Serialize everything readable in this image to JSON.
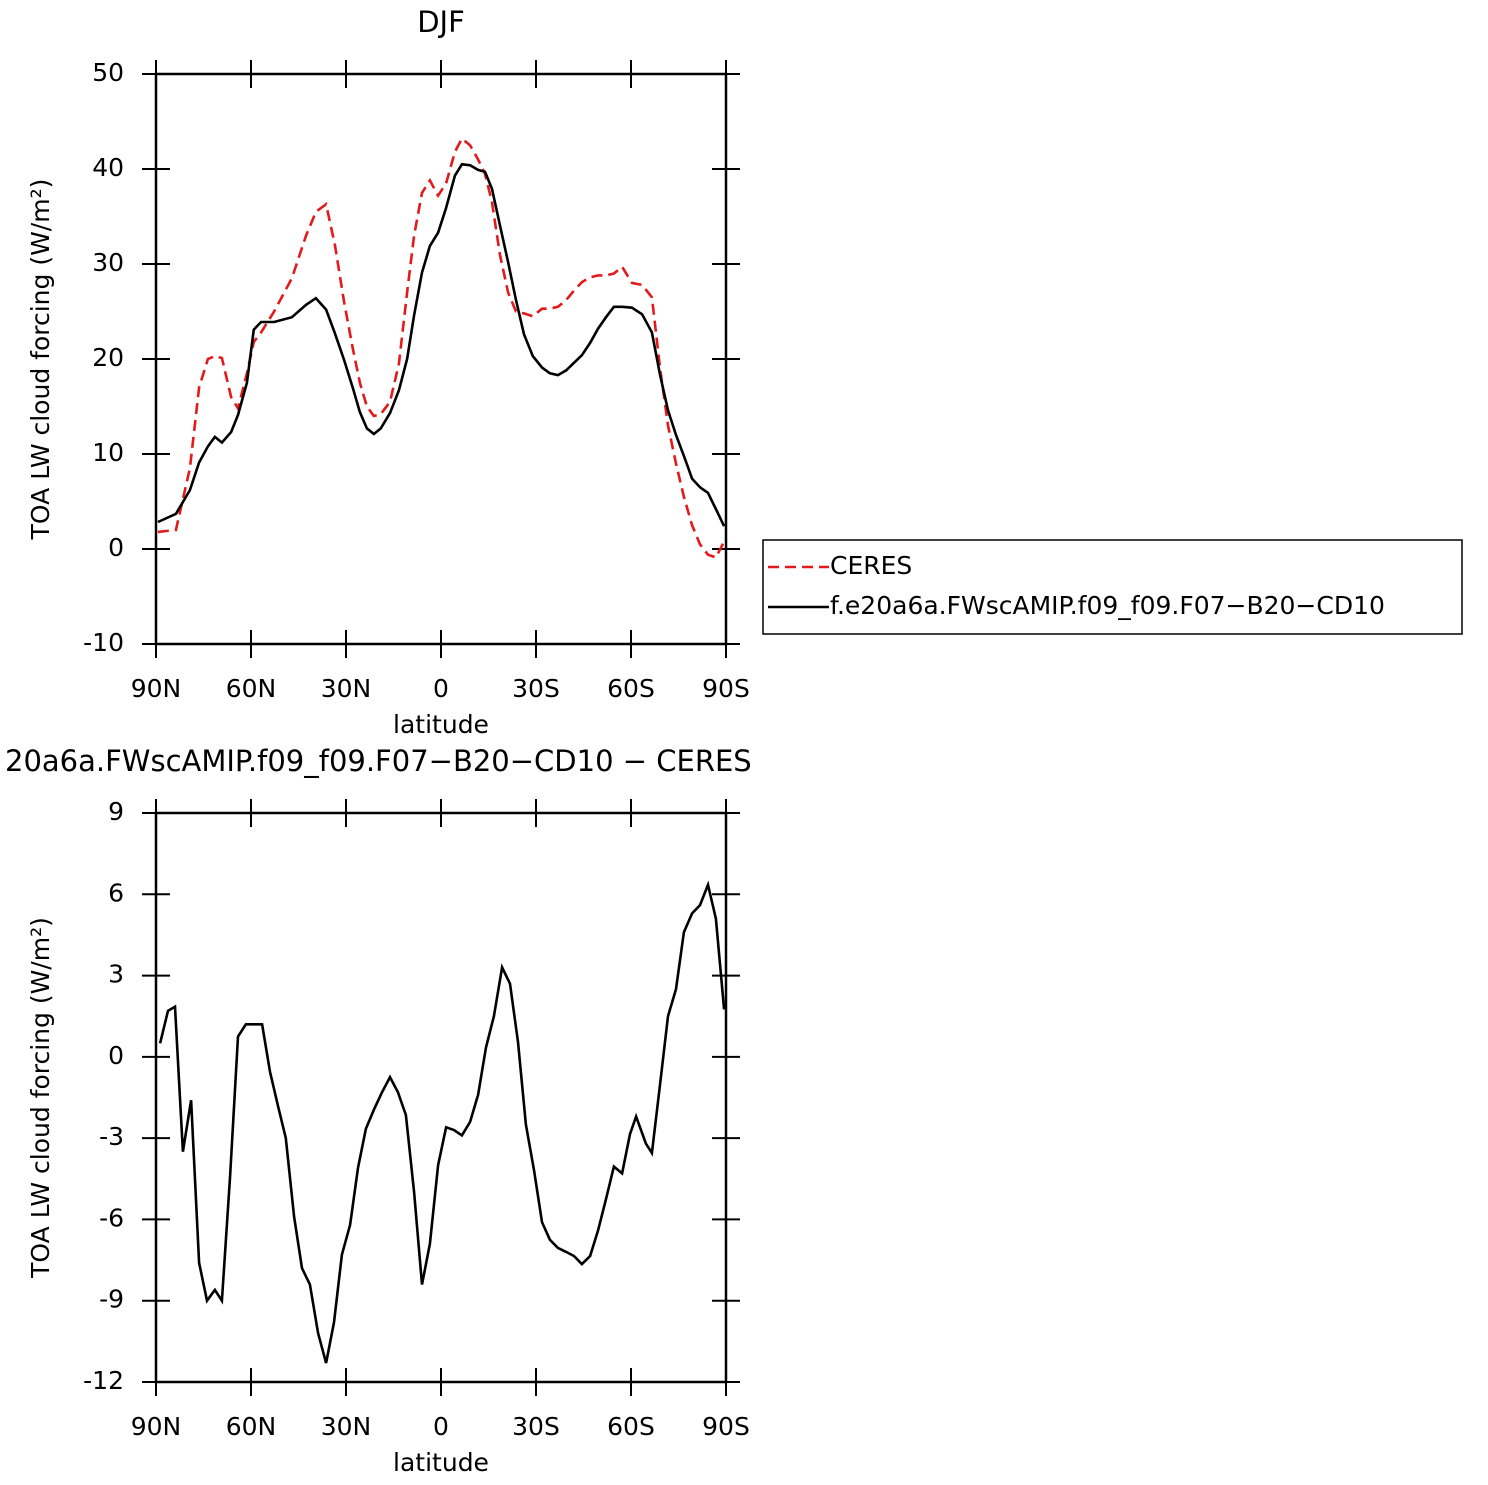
{
  "chart_data": [
    {
      "type": "line",
      "title": "DJF",
      "xlabel": "latitude",
      "ylabel": "TOA LW cloud forcing (W/m²)",
      "x": [
        89.4,
        83.7,
        79.3,
        76.4,
        73.6,
        71.4,
        69.2,
        66.3,
        64.1,
        61.3,
        59.1,
        56.8,
        52.7,
        47.1,
        42.6,
        39.5,
        36.3,
        33.5,
        30.6,
        27.8,
        25.6,
        23.4,
        21.2,
        19.0,
        16.1,
        13.3,
        10.7,
        8.5,
        6.0,
        3.5,
        0.9,
        -1.6,
        -4.4,
        -6.6,
        -9.2,
        -11.7,
        -13.9,
        -16.1,
        -18.6,
        -21.2,
        -23.7,
        -26.2,
        -29.0,
        -31.9,
        -34.4,
        -36.9,
        -39.5,
        -42.0,
        -44.5,
        -47.1,
        -49.6,
        -52.1,
        -54.6,
        -57.2,
        -60.3,
        -63.5,
        -66.6,
        -69.2,
        -71.7,
        -74.2,
        -76.7,
        -79.3,
        -81.8,
        -84.3,
        -86.8,
        -89.4
      ],
      "series": [
        {
          "name": "CERES",
          "color": "#e31a1c",
          "linestyle": "dashed",
          "values": [
            1.8,
            2.0,
            8.5,
            17,
            20,
            20.3,
            20.1,
            16,
            14.8,
            18.5,
            21.8,
            22.8,
            25,
            28.5,
            33,
            35.5,
            36.3,
            32,
            26,
            21,
            17.5,
            15,
            14,
            14.2,
            15.5,
            19.5,
            27,
            33,
            37.5,
            38.8,
            37.2,
            38.5,
            41.8,
            43.2,
            42.5,
            41,
            39.5,
            36.5,
            31,
            27,
            25,
            24.8,
            24.5,
            25.3,
            25.3,
            25.5,
            26.2,
            27.2,
            28.1,
            28.6,
            28.8,
            28.8,
            29.0,
            29.7,
            28,
            27.8,
            26.5,
            19,
            13,
            9,
            5.5,
            2.5,
            0.5,
            -0.6,
            -0.9,
            0.8
          ]
        },
        {
          "name": "f.e20a6a.FWscAMIP.f09_f09.F07−B20−CD10",
          "color": "#000000",
          "linestyle": "solid",
          "values": [
            2.84,
            3.7,
            6.2,
            9.1,
            10.8,
            11.8,
            11.2,
            12.3,
            14.1,
            17.5,
            23.1,
            23.9,
            23.9,
            24.4,
            25.7,
            26.4,
            25.2,
            22.7,
            19.9,
            16.9,
            14.4,
            12.7,
            12.1,
            12.7,
            14.3,
            16.7,
            20.0,
            24.6,
            29.1,
            31.9,
            33.3,
            35.9,
            39.3,
            40.5,
            40.4,
            39.9,
            39.7,
            37.9,
            34.1,
            30.2,
            26.2,
            22.6,
            20.3,
            19.1,
            18.5,
            18.3,
            18.8,
            19.6,
            20.4,
            21.7,
            23.2,
            24.4,
            25.5,
            25.5,
            25.4,
            24.7,
            22.8,
            18.3,
            14.6,
            12.0,
            9.8,
            7.4,
            6.5,
            5.9,
            4.2,
            2.4
          ]
        }
      ],
      "xlim": [
        90,
        -90
      ],
      "xticks": [
        {
          "value": 90,
          "label": "90N"
        },
        {
          "value": 60,
          "label": "60N"
        },
        {
          "value": 30,
          "label": "30N"
        },
        0,
        {
          "value": -30,
          "label": "30S"
        },
        {
          "value": -60,
          "label": "60S"
        },
        {
          "value": -90,
          "label": "90S"
        }
      ],
      "ylim": [
        -10,
        50
      ],
      "yticks": [
        -10,
        0,
        10,
        20,
        30,
        40,
        50
      ],
      "legend": "right"
    },
    {
      "type": "line",
      "title": "20a6a.FWscAMIP.f09_f09.F07−B20−CD10 − CERES",
      "xlabel": "latitude",
      "ylabel": "TOA LW cloud forcing (W/m²)",
      "x": [
        88.7,
        86.2,
        84.0,
        81.5,
        78.9,
        76.4,
        73.9,
        71.4,
        69.2,
        66.6,
        64.1,
        61.6,
        59.1,
        56.5,
        54.0,
        51.5,
        49.0,
        46.4,
        43.9,
        41.4,
        38.8,
        36.3,
        33.8,
        31.3,
        28.7,
        26.2,
        23.7,
        21.2,
        18.6,
        16.1,
        13.6,
        11.1,
        8.5,
        6.0,
        3.5,
        0.9,
        -1.6,
        -4.1,
        -6.6,
        -9.2,
        -11.7,
        -14.2,
        -16.7,
        -19.3,
        -21.8,
        -24.3,
        -26.8,
        -29.4,
        -31.9,
        -34.4,
        -36.9,
        -39.5,
        -42.0,
        -44.5,
        -47.1,
        -49.6,
        -52.1,
        -54.6,
        -57.2,
        -59.7,
        -61.6,
        -64.7,
        -66.6,
        -69.2,
        -71.7,
        -74.2,
        -76.7,
        -79.3,
        -81.8,
        -84.3,
        -86.8,
        -89.4
      ],
      "series": [
        {
          "color": "#000000",
          "linestyle": "solid",
          "values": [
            0.5,
            1.7,
            1.85,
            -3.5,
            -1.6,
            -7.6,
            -9.0,
            -8.6,
            -9.0,
            -4.4,
            0.75,
            1.2,
            1.2,
            1.2,
            -0.55,
            -1.8,
            -3.0,
            -5.9,
            -7.8,
            -8.4,
            -10.2,
            -11.3,
            -9.8,
            -7.3,
            -6.2,
            -4.1,
            -2.65,
            -1.95,
            -1.3,
            -0.75,
            -1.3,
            -2.15,
            -5.0,
            -8.4,
            -6.9,
            -4.0,
            -2.6,
            -2.7,
            -2.9,
            -2.4,
            -1.4,
            0.35,
            1.5,
            3.3,
            2.7,
            0.55,
            -2.5,
            -4.2,
            -6.1,
            -6.75,
            -7.05,
            -7.2,
            -7.35,
            -7.65,
            -7.35,
            -6.4,
            -5.25,
            -4.05,
            -4.3,
            -2.85,
            -2.2,
            -3.2,
            -3.55,
            -1.0,
            1.5,
            2.5,
            4.6,
            5.3,
            5.6,
            6.35,
            5.1,
            1.75
          ]
        }
      ],
      "xlim": [
        90,
        -90
      ],
      "xticks": [
        {
          "value": 90,
          "label": "90N"
        },
        {
          "value": 60,
          "label": "60N"
        },
        {
          "value": 30,
          "label": "30N"
        },
        0,
        {
          "value": -30,
          "label": "30S"
        },
        {
          "value": -60,
          "label": "60S"
        },
        {
          "value": -90,
          "label": "90S"
        }
      ],
      "ylim": [
        -12,
        9
      ],
      "yticks": [
        -12,
        -9,
        -6,
        -3,
        0,
        3,
        6,
        9
      ]
    }
  ]
}
